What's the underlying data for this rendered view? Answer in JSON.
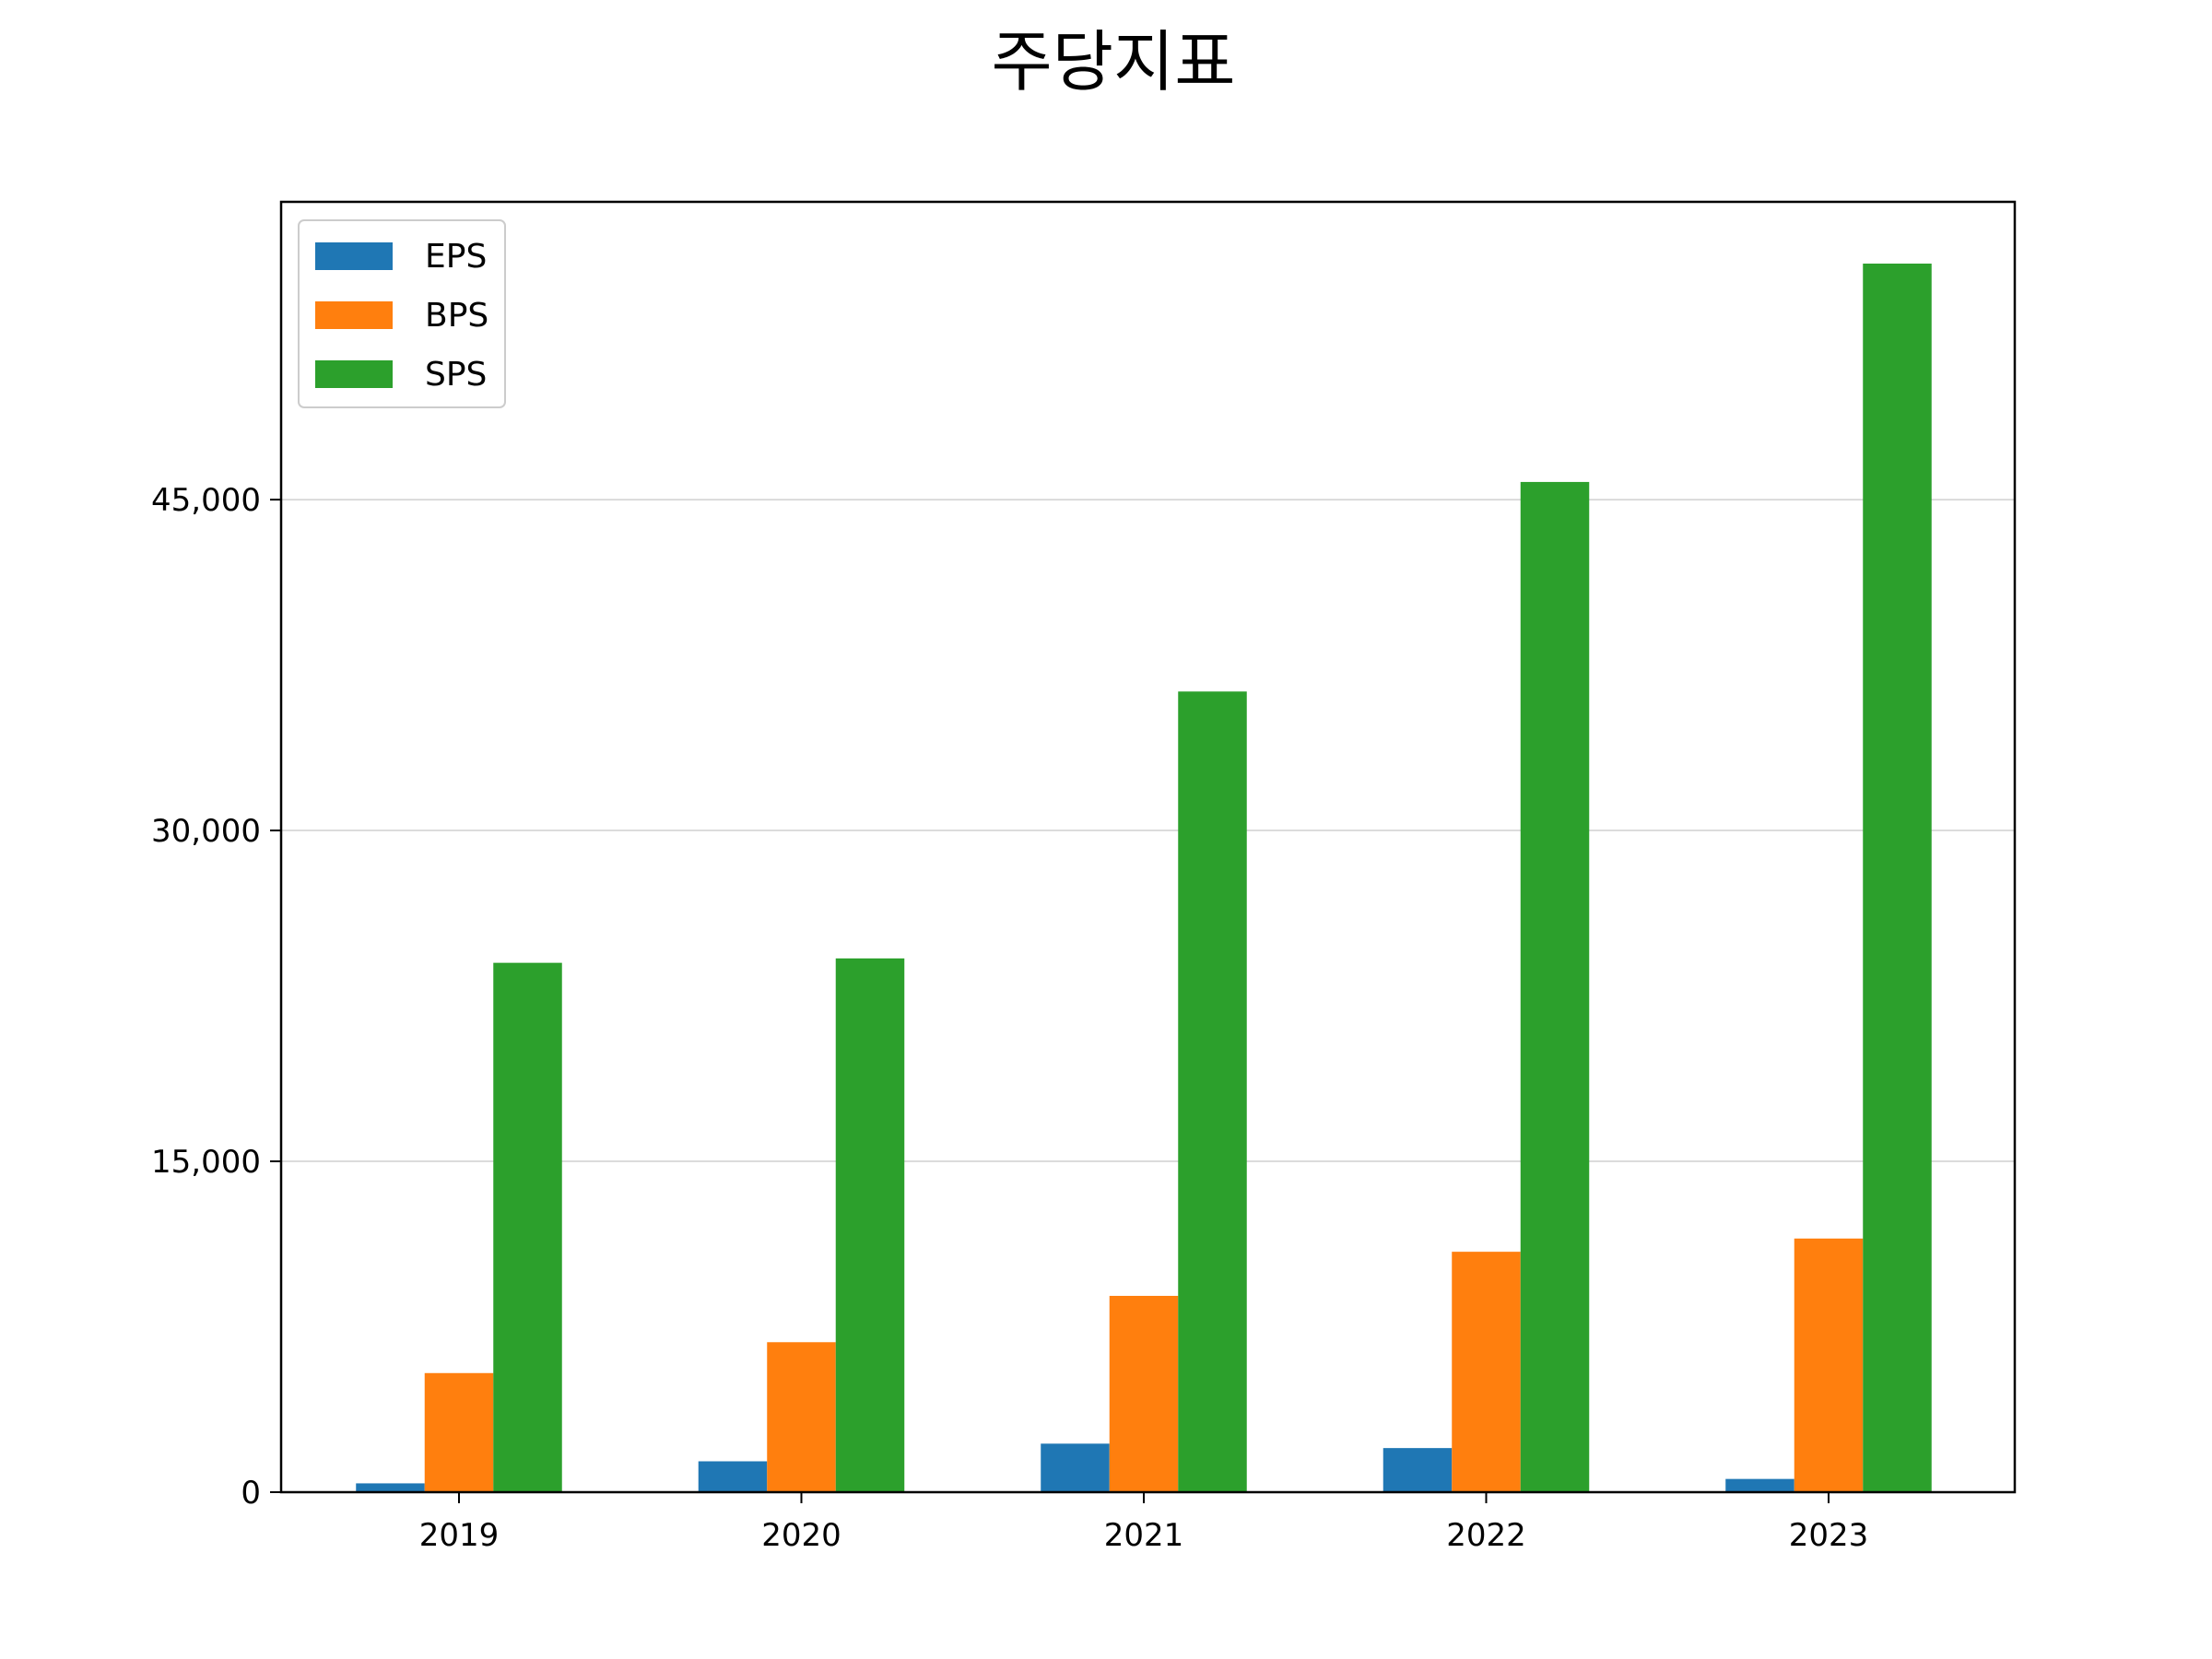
{
  "chart_data": {
    "type": "bar",
    "title": "주당지표",
    "xlabel": "",
    "ylabel": "",
    "categories": [
      "2019",
      "2020",
      "2021",
      "2022",
      "2023"
    ],
    "series": [
      {
        "name": "EPS",
        "color": "#1f77b4",
        "values": [
          400,
          1400,
          2200,
          2000,
          600
        ]
      },
      {
        "name": "BPS",
        "color": "#ff7f0e",
        "values": [
          5400,
          6800,
          8900,
          10900,
          11500
        ]
      },
      {
        "name": "SPS",
        "color": "#2ca02c",
        "values": [
          24000,
          24200,
          36300,
          45800,
          55700
        ]
      }
    ],
    "y_ticks": [
      0,
      15000,
      30000,
      45000
    ],
    "y_tick_labels": [
      "0",
      "15,000",
      "30,000",
      "45,000"
    ],
    "ylim": [
      0,
      58500
    ],
    "grid": "horizontal",
    "legend_position": "top-left"
  }
}
